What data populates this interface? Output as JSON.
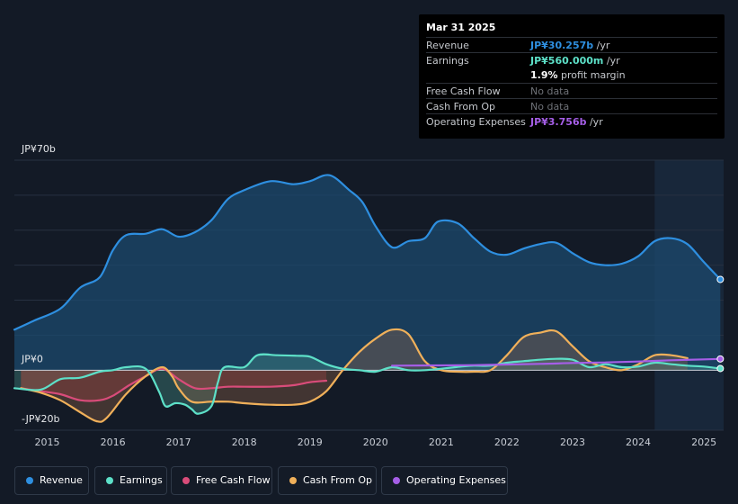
{
  "chart_data": {
    "type": "area",
    "currency": "JP¥",
    "y_axis_labels": [
      "JP¥70b",
      "JP¥0",
      "-JP¥20b"
    ],
    "ylim": [
      -20,
      70
    ],
    "xlim": [
      2014.5,
      2025.3
    ],
    "x_ticks": [
      2015,
      2016,
      2017,
      2018,
      2019,
      2020,
      2021,
      2022,
      2023,
      2024,
      2025
    ],
    "x_tick_labels": [
      "2015",
      "2016",
      "2017",
      "2018",
      "2019",
      "2020",
      "2021",
      "2022",
      "2023",
      "2024",
      "2025"
    ],
    "forecast_start": 2024.25,
    "series": [
      {
        "name": "Revenue",
        "color": "#2e8fe0",
        "area": true,
        "points": [
          [
            2014.5,
            13.5
          ],
          [
            2014.8,
            16.5
          ],
          [
            2015.2,
            20.5
          ],
          [
            2015.5,
            27.5
          ],
          [
            2015.8,
            31
          ],
          [
            2016.0,
            40
          ],
          [
            2016.2,
            45
          ],
          [
            2016.5,
            45.5
          ],
          [
            2016.75,
            47
          ],
          [
            2017.0,
            44.5
          ],
          [
            2017.25,
            46
          ],
          [
            2017.5,
            50
          ],
          [
            2017.75,
            57
          ],
          [
            2018.0,
            60
          ],
          [
            2018.4,
            63
          ],
          [
            2018.75,
            62
          ],
          [
            2019.0,
            63
          ],
          [
            2019.3,
            65
          ],
          [
            2019.6,
            60
          ],
          [
            2019.8,
            56
          ],
          [
            2020.0,
            48
          ],
          [
            2020.25,
            41
          ],
          [
            2020.5,
            43
          ],
          [
            2020.75,
            44
          ],
          [
            2020.95,
            49.5
          ],
          [
            2021.25,
            49
          ],
          [
            2021.5,
            44
          ],
          [
            2021.75,
            39.5
          ],
          [
            2022.0,
            38.5
          ],
          [
            2022.25,
            40.5
          ],
          [
            2022.5,
            42
          ],
          [
            2022.75,
            42.5
          ],
          [
            2023.0,
            39
          ],
          [
            2023.25,
            36
          ],
          [
            2023.5,
            35
          ],
          [
            2023.75,
            35.5
          ],
          [
            2024.0,
            38
          ],
          [
            2024.25,
            43
          ],
          [
            2024.5,
            44
          ],
          [
            2024.75,
            42
          ],
          [
            2025.0,
            36
          ],
          [
            2025.25,
            30.257
          ]
        ]
      },
      {
        "name": "Earnings",
        "color": "#5de0c8",
        "area": true,
        "points": [
          [
            2014.5,
            -6
          ],
          [
            2014.9,
            -6.5
          ],
          [
            2015.2,
            -3
          ],
          [
            2015.5,
            -2.5
          ],
          [
            2015.8,
            -0.5
          ],
          [
            2016.0,
            0
          ],
          [
            2016.2,
            1
          ],
          [
            2016.5,
            0.5
          ],
          [
            2016.7,
            -7
          ],
          [
            2016.8,
            -12
          ],
          [
            2016.95,
            -11
          ],
          [
            2017.1,
            -11.5
          ],
          [
            2017.2,
            -13
          ],
          [
            2017.3,
            -14.5
          ],
          [
            2017.5,
            -12
          ],
          [
            2017.6,
            -4
          ],
          [
            2017.7,
            1
          ],
          [
            2018.0,
            1
          ],
          [
            2018.2,
            5
          ],
          [
            2018.5,
            5
          ],
          [
            2018.8,
            4.8
          ],
          [
            2019.0,
            4.5
          ],
          [
            2019.25,
            2
          ],
          [
            2019.5,
            0.5
          ],
          [
            2019.75,
            0
          ],
          [
            2020.0,
            -0.5
          ],
          [
            2020.25,
            1
          ],
          [
            2020.5,
            0
          ],
          [
            2020.75,
            0
          ],
          [
            2021.0,
            0.5
          ],
          [
            2021.3,
            1.2
          ],
          [
            2021.5,
            1.5
          ],
          [
            2021.75,
            1.5
          ],
          [
            2022.0,
            2.5
          ],
          [
            2022.25,
            3
          ],
          [
            2022.5,
            3.5
          ],
          [
            2022.75,
            3.8
          ],
          [
            2023.0,
            3.5
          ],
          [
            2023.25,
            1
          ],
          [
            2023.5,
            2
          ],
          [
            2023.75,
            1
          ],
          [
            2024.0,
            1.2
          ],
          [
            2024.25,
            2.5
          ],
          [
            2024.5,
            2
          ],
          [
            2024.75,
            1.5
          ],
          [
            2025.0,
            1.2
          ],
          [
            2025.25,
            0.56
          ]
        ]
      },
      {
        "name": "Free Cash Flow",
        "color": "#d94c7a",
        "area": true,
        "points": [
          [
            2014.6,
            -6
          ],
          [
            2014.9,
            -7
          ],
          [
            2015.2,
            -8
          ],
          [
            2015.5,
            -10
          ],
          [
            2015.8,
            -10
          ],
          [
            2016.0,
            -8.5
          ],
          [
            2016.25,
            -5
          ],
          [
            2016.5,
            -2
          ],
          [
            2016.75,
            0.5
          ],
          [
            2017.0,
            -3
          ],
          [
            2017.25,
            -6
          ],
          [
            2017.5,
            -6
          ],
          [
            2017.75,
            -5.5
          ],
          [
            2018.0,
            -5.5
          ],
          [
            2018.4,
            -5.5
          ],
          [
            2018.75,
            -5
          ],
          [
            2019.0,
            -4
          ],
          [
            2019.25,
            -3.5
          ]
        ]
      },
      {
        "name": "Cash From Op",
        "color": "#f0b05a",
        "area": true,
        "points": [
          [
            2014.6,
            -6
          ],
          [
            2014.9,
            -7.5
          ],
          [
            2015.2,
            -10
          ],
          [
            2015.5,
            -14
          ],
          [
            2015.75,
            -17
          ],
          [
            2015.9,
            -16
          ],
          [
            2016.2,
            -8
          ],
          [
            2016.5,
            -2
          ],
          [
            2016.75,
            1
          ],
          [
            2016.9,
            -2
          ],
          [
            2017.0,
            -6
          ],
          [
            2017.2,
            -10.5
          ],
          [
            2017.5,
            -10.5
          ],
          [
            2017.75,
            -10.5
          ],
          [
            2018.0,
            -11
          ],
          [
            2018.4,
            -11.5
          ],
          [
            2018.75,
            -11.5
          ],
          [
            2019.0,
            -10.5
          ],
          [
            2019.25,
            -7
          ],
          [
            2019.5,
            0
          ],
          [
            2019.75,
            6
          ],
          [
            2020.0,
            10.5
          ],
          [
            2020.25,
            13.5
          ],
          [
            2020.5,
            12
          ],
          [
            2020.75,
            3
          ],
          [
            2021.0,
            0
          ],
          [
            2021.25,
            -0.5
          ],
          [
            2021.5,
            -0.5
          ],
          [
            2021.75,
            0
          ],
          [
            2022.0,
            5
          ],
          [
            2022.25,
            11
          ],
          [
            2022.5,
            12.5
          ],
          [
            2022.75,
            13
          ],
          [
            2023.0,
            8
          ],
          [
            2023.25,
            3
          ],
          [
            2023.5,
            1
          ],
          [
            2023.75,
            0
          ],
          [
            2024.0,
            2
          ],
          [
            2024.25,
            5
          ],
          [
            2024.5,
            5
          ],
          [
            2024.75,
            4
          ]
        ]
      },
      {
        "name": "Operating Expenses",
        "color": "#a55ee6",
        "area": false,
        "points": [
          [
            2020.25,
            1.5
          ],
          [
            2021.0,
            1.6
          ],
          [
            2021.5,
            1.7
          ],
          [
            2022.0,
            1.9
          ],
          [
            2022.5,
            2.1
          ],
          [
            2023.0,
            2.4
          ],
          [
            2023.5,
            2.6
          ],
          [
            2024.0,
            2.9
          ],
          [
            2024.5,
            3.3
          ],
          [
            2025.0,
            3.6
          ],
          [
            2025.25,
            3.756
          ]
        ]
      }
    ]
  },
  "tooltip": {
    "date": "Mar 31 2025",
    "rows": [
      {
        "label": "Revenue",
        "value": "JP¥30.257b",
        "unit": " /yr",
        "color": "#2e8fe0"
      },
      {
        "label": "Earnings",
        "value": "JP¥560.000m",
        "unit": " /yr",
        "color": "#5de0c8"
      },
      {
        "label": "",
        "value": "1.9%",
        "unit": " profit margin",
        "color": "#ffffff"
      },
      {
        "label": "Free Cash Flow",
        "value": "No data",
        "unit": "",
        "color": "#6e7177"
      },
      {
        "label": "Cash From Op",
        "value": "No data",
        "unit": "",
        "color": "#6e7177"
      },
      {
        "label": "Operating Expenses",
        "value": "JP¥3.756b",
        "unit": " /yr",
        "color": "#a55ee6"
      }
    ]
  },
  "legend": [
    {
      "label": "Revenue",
      "color": "#2e8fe0"
    },
    {
      "label": "Earnings",
      "color": "#5de0c8"
    },
    {
      "label": "Free Cash Flow",
      "color": "#d94c7a"
    },
    {
      "label": "Cash From Op",
      "color": "#f0b05a"
    },
    {
      "label": "Operating Expenses",
      "color": "#a55ee6"
    }
  ]
}
